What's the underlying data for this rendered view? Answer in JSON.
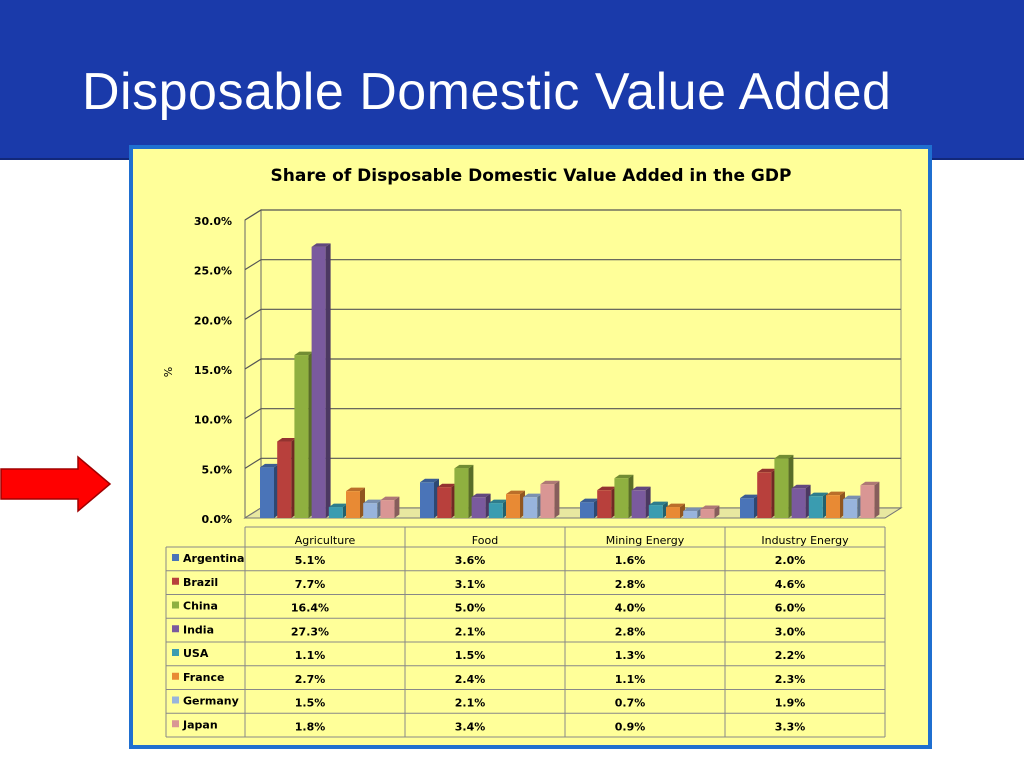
{
  "slide": {
    "title": "Disposable Domestic Value Added"
  },
  "chart_data": {
    "type": "bar",
    "title": "Share of Disposable Domestic Value Added in the GDP",
    "ylabel": "%",
    "xlabel": "",
    "ylim": [
      0,
      30
    ],
    "yticks": [
      "0.0%",
      "5.0%",
      "10.0%",
      "15.0%",
      "20.0%",
      "25.0%",
      "30.0%"
    ],
    "grid": true,
    "legend": "data-table",
    "categories": [
      "Agriculture",
      "Food",
      "Mining Energy",
      "Industry Energy"
    ],
    "series": [
      {
        "name": "Argentina",
        "color": "#4a74b8",
        "values": [
          5.1,
          3.6,
          1.6,
          2.0
        ],
        "labels": [
          "5.1%",
          "3.6%",
          "1.6%",
          "2.0%"
        ]
      },
      {
        "name": "Brazil",
        "color": "#b8403c",
        "values": [
          7.7,
          3.1,
          2.8,
          4.6
        ],
        "labels": [
          "7.7%",
          "3.1%",
          "2.8%",
          "4.6%"
        ]
      },
      {
        "name": "China",
        "color": "#8fb040",
        "values": [
          16.4,
          5.0,
          4.0,
          6.0
        ],
        "labels": [
          "16.4%",
          "5.0%",
          "4.0%",
          "6.0%"
        ]
      },
      {
        "name": "India",
        "color": "#7a5a9e",
        "values": [
          27.3,
          2.1,
          2.8,
          3.0
        ],
        "labels": [
          "27.3%",
          "2.1%",
          "2.8%",
          "3.0%"
        ]
      },
      {
        "name": "USA",
        "color": "#3a9cb0",
        "values": [
          1.1,
          1.5,
          1.3,
          2.2
        ],
        "labels": [
          "1.1%",
          "1.5%",
          "1.3%",
          "2.2%"
        ]
      },
      {
        "name": "France",
        "color": "#e88a34",
        "values": [
          2.7,
          2.4,
          1.1,
          2.3
        ],
        "labels": [
          "2.7%",
          "2.4%",
          "1.1%",
          "2.3%"
        ]
      },
      {
        "name": "Germany",
        "color": "#98b4dc",
        "values": [
          1.5,
          2.1,
          0.7,
          1.9
        ],
        "labels": [
          "1.5%",
          "2.1%",
          "0.7%",
          "1.9%"
        ]
      },
      {
        "name": "Japan",
        "color": "#d99694",
        "values": [
          1.8,
          3.4,
          0.9,
          3.3
        ],
        "labels": [
          "1.8%",
          "3.4%",
          "0.9%",
          "3.3%"
        ]
      }
    ]
  }
}
